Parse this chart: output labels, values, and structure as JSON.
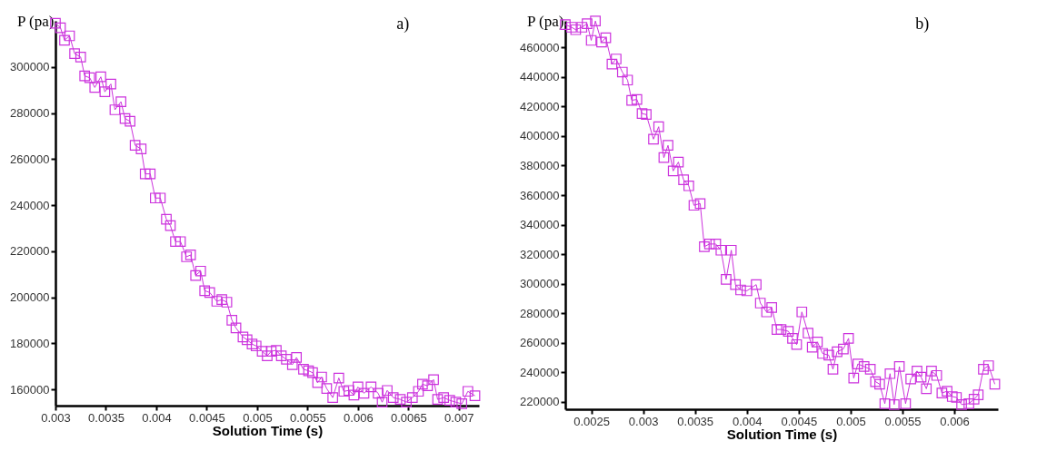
{
  "chart_data": [
    {
      "type": "line",
      "title": "a)",
      "xlabel": "Solution Time (s)",
      "ylabel": "P (pa)",
      "xlim": [
        0.003,
        0.0072
      ],
      "xticks": [
        0.003,
        0.0035,
        0.004,
        0.0045,
        0.005,
        0.0055,
        0.006,
        0.0065,
        0.007
      ],
      "ylim": [
        153000,
        320000
      ],
      "yticks": [
        160000,
        180000,
        200000,
        220000,
        240000,
        260000,
        280000,
        300000
      ],
      "grid": false,
      "marker": "square",
      "line_style": "solid",
      "series": [
        {
          "color": "#cc33dd",
          "x": [
            0.003,
            0.00305,
            0.00309,
            0.00314,
            0.00319,
            0.00325,
            0.00329,
            0.00334,
            0.00339,
            0.00345,
            0.00349,
            0.00355,
            0.00359,
            0.00365,
            0.00369,
            0.00374,
            0.00379,
            0.00385,
            0.00389,
            0.00394,
            0.00399,
            0.00404,
            0.0041,
            0.00414,
            0.00419,
            0.00424,
            0.0043,
            0.00434,
            0.00439,
            0.00444,
            0.00448,
            0.00453,
            0.0046,
            0.00465,
            0.0047,
            0.00475,
            0.00479,
            0.00486,
            0.0049,
            0.00495,
            0.00499,
            0.00505,
            0.0051,
            0.00514,
            0.00519,
            0.00524,
            0.00529,
            0.00535,
            0.00539,
            0.00546,
            0.00551,
            0.00555,
            0.0056,
            0.00564,
            0.00569,
            0.00575,
            0.00581,
            0.00586,
            0.00591,
            0.00596,
            0.006,
            0.00606,
            0.00613,
            0.0062,
            0.00624,
            0.00629,
            0.00635,
            0.00642,
            0.00648,
            0.00654,
            0.0066,
            0.00664,
            0.00669,
            0.00675,
            0.00679,
            0.00685,
            0.00691,
            0.00697,
            0.00703,
            0.00709,
            0.00716
          ],
          "values": [
            319000,
            317000,
            311600,
            313500,
            305800,
            304300,
            296100,
            295300,
            291100,
            295700,
            289200,
            292600,
            281400,
            284900,
            277600,
            276400,
            266000,
            264400,
            253600,
            253600,
            243100,
            243100,
            233900,
            231100,
            224200,
            224200,
            217600,
            218400,
            209500,
            211400,
            202900,
            202100,
            198300,
            199000,
            197900,
            190100,
            186700,
            182800,
            181600,
            179700,
            178900,
            176600,
            174600,
            176600,
            177000,
            174600,
            173100,
            170800,
            173900,
            168800,
            168100,
            167300,
            163000,
            165400,
            160400,
            156500,
            165000,
            159200,
            159600,
            157600,
            161100,
            158400,
            161100,
            158400,
            154500,
            159600,
            156500,
            155700,
            154500,
            156500,
            159200,
            162300,
            161600,
            164300,
            155700,
            156500,
            155300,
            154500,
            153800,
            159200,
            157300
          ]
        }
      ]
    },
    {
      "type": "line",
      "title": "b)",
      "xlabel": "Solution Time (s)",
      "ylabel": "P (pa)",
      "xlim": [
        0.00225,
        0.00642
      ],
      "xticks": [
        0.0025,
        0.003,
        0.0035,
        0.004,
        0.0045,
        0.005,
        0.0055,
        0.006
      ],
      "ylim": [
        215000,
        478000
      ],
      "yticks": [
        220000,
        240000,
        260000,
        280000,
        300000,
        320000,
        340000,
        360000,
        380000,
        400000,
        420000,
        440000,
        460000
      ],
      "grid": false,
      "marker": "square",
      "line_style": "solid",
      "series": [
        {
          "color": "#cc33dd",
          "x": [
            0.00225,
            0.00231,
            0.00235,
            0.00241,
            0.00246,
            0.0025,
            0.00254,
            0.0026,
            0.00264,
            0.0027,
            0.00274,
            0.0028,
            0.00285,
            0.00289,
            0.00294,
            0.00299,
            0.00303,
            0.0031,
            0.00315,
            0.0032,
            0.00324,
            0.00329,
            0.00334,
            0.00339,
            0.00344,
            0.00349,
            0.00355,
            0.00359,
            0.00364,
            0.0037,
            0.00375,
            0.0038,
            0.00385,
            0.00389,
            0.00394,
            0.004,
            0.00409,
            0.00413,
            0.00419,
            0.00424,
            0.00429,
            0.00433,
            0.0044,
            0.00444,
            0.00448,
            0.00453,
            0.00459,
            0.00463,
            0.00468,
            0.00473,
            0.00479,
            0.00483,
            0.00487,
            0.00493,
            0.00498,
            0.00503,
            0.00507,
            0.00513,
            0.00519,
            0.00524,
            0.00528,
            0.00533,
            0.00538,
            0.00542,
            0.00547,
            0.00553,
            0.00558,
            0.00564,
            0.00568,
            0.00573,
            0.00578,
            0.00583,
            0.00588,
            0.00593,
            0.00598,
            0.00602,
            0.00607,
            0.00614,
            0.00619,
            0.00623,
            0.00628,
            0.00633,
            0.00639
          ],
          "values": [
            475500,
            473700,
            472000,
            473700,
            476100,
            464800,
            477900,
            463600,
            466600,
            448700,
            452200,
            443300,
            437900,
            424200,
            424800,
            415200,
            414600,
            397900,
            406300,
            385400,
            393700,
            376400,
            382400,
            370400,
            366300,
            353100,
            354300,
            325100,
            326900,
            326900,
            322700,
            303000,
            322700,
            299400,
            295800,
            295200,
            299400,
            286900,
            280900,
            283900,
            269000,
            269000,
            267800,
            263000,
            258800,
            280900,
            266600,
            257000,
            260600,
            252800,
            251600,
            242100,
            254000,
            255800,
            263000,
            236100,
            245700,
            243900,
            242100,
            233700,
            232000,
            218800,
            239100,
            218200,
            243900,
            218800,
            235500,
            240900,
            236700,
            228900,
            240900,
            237900,
            226000,
            227200,
            223600,
            223000,
            218200,
            218800,
            221800,
            224800,
            242100,
            244500,
            232000
          ]
        }
      ]
    }
  ]
}
